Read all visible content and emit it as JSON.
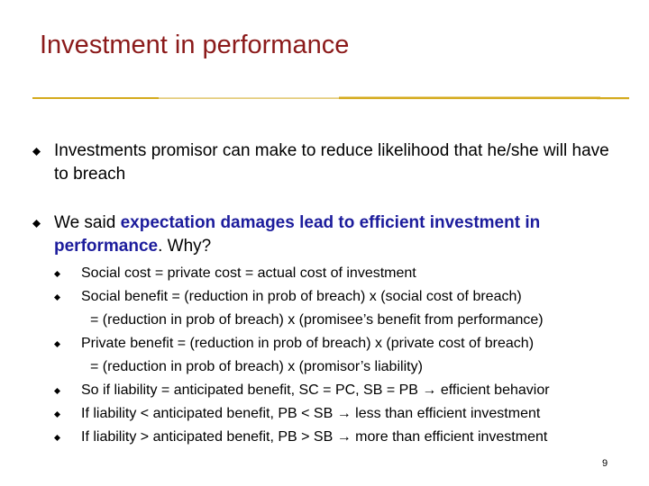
{
  "title": "Investment in performance",
  "accent_color": "#8b1a1a",
  "rule_color": "#d4aa1c",
  "emphasis_color": "#1c1c9c",
  "bullets": [
    {
      "text": "Investments promisor can make to reduce likelihood that he/she will have to breach"
    },
    {
      "prefix": "We said ",
      "emphasis": "expectation damages lead to efficient investment in performance",
      "suffix": ".  Why?"
    }
  ],
  "sub_bullets": [
    {
      "text": "Social cost = private cost = actual cost of investment"
    },
    {
      "text": "Social benefit = (reduction in prob of breach) x (social cost of breach)",
      "continuation": "= (reduction in prob of breach) x (promisee’s benefit from performance)"
    },
    {
      "text": "Private benefit = (reduction in prob of  breach) x (private cost of breach)",
      "continuation": "= (reduction in prob of breach) x (promisor’s liability)"
    },
    {
      "text": "So if liability = anticipated benefit, SC = PC, SB = PB → efficient behavior"
    },
    {
      "text": "If liability < anticipated benefit, PB < SB → less than efficient investment"
    },
    {
      "text": "If liability > anticipated benefit, PB > SB → more than efficient investment"
    }
  ],
  "page_number": "9"
}
